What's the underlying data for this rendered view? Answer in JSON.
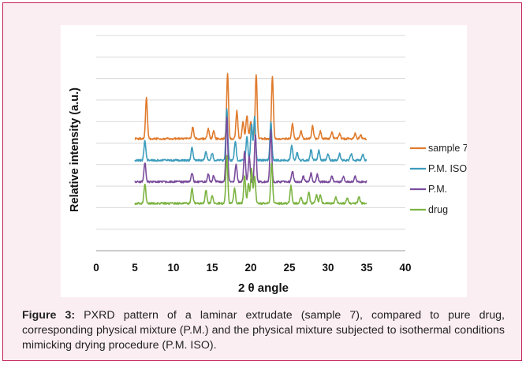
{
  "chart_data": {
    "type": "line",
    "xlabel": "2 θ angle",
    "ylabel": "Relative intensity (a.u.)",
    "xlim": [
      0,
      40
    ],
    "x_ticks": [
      "0",
      "5",
      "10",
      "15",
      "20",
      "25",
      "30",
      "35",
      "40"
    ],
    "x_tick_values": [
      0,
      5,
      10,
      15,
      20,
      25,
      30,
      35,
      40
    ],
    "ylim": [
      0,
      10
    ],
    "grid": "horizontal",
    "legend_position": "right",
    "series": [
      {
        "name": "sample 7",
        "color": "#e07b2d",
        "baseline": 5.2,
        "peaks": [
          [
            6.5,
            1.9
          ],
          [
            12.5,
            0.55
          ],
          [
            14.5,
            0.45
          ],
          [
            15.2,
            0.35
          ],
          [
            17.0,
            3.0
          ],
          [
            18.2,
            1.3
          ],
          [
            19.0,
            0.8
          ],
          [
            19.5,
            1.1
          ],
          [
            20.0,
            0.8
          ],
          [
            20.7,
            3.0
          ],
          [
            22.8,
            2.9
          ],
          [
            25.4,
            0.7
          ],
          [
            26.5,
            0.35
          ],
          [
            28.0,
            0.6
          ],
          [
            29.0,
            0.35
          ],
          [
            30.5,
            0.3
          ],
          [
            31.5,
            0.25
          ],
          [
            33.5,
            0.25
          ],
          [
            34.2,
            0.2
          ]
        ]
      },
      {
        "name": "P.M. ISO",
        "color": "#3c9cbc",
        "baseline": 4.2,
        "peaks": [
          [
            6.3,
            0.9
          ],
          [
            12.4,
            0.6
          ],
          [
            14.2,
            0.4
          ],
          [
            15.0,
            0.35
          ],
          [
            16.9,
            2.4
          ],
          [
            18.0,
            0.9
          ],
          [
            19.5,
            1.1
          ],
          [
            20.1,
            1.7
          ],
          [
            20.5,
            2.0
          ],
          [
            22.6,
            1.8
          ],
          [
            25.3,
            0.7
          ],
          [
            26.0,
            0.35
          ],
          [
            27.8,
            0.5
          ],
          [
            28.8,
            0.45
          ],
          [
            30.0,
            0.3
          ],
          [
            31.5,
            0.3
          ],
          [
            33.0,
            0.3
          ],
          [
            34.5,
            0.3
          ]
        ]
      },
      {
        "name": "P.M.",
        "color": "#7a4c9c",
        "baseline": 3.2,
        "peaks": [
          [
            6.3,
            0.9
          ],
          [
            12.4,
            0.4
          ],
          [
            14.5,
            0.35
          ],
          [
            15.2,
            0.3
          ],
          [
            16.9,
            3.0
          ],
          [
            18.1,
            0.8
          ],
          [
            19.2,
            1.4
          ],
          [
            19.8,
            1.2
          ],
          [
            20.6,
            2.2
          ],
          [
            22.6,
            2.4
          ],
          [
            25.4,
            0.5
          ],
          [
            26.8,
            0.25
          ],
          [
            27.8,
            0.4
          ],
          [
            28.6,
            0.35
          ],
          [
            30.5,
            0.25
          ],
          [
            32.0,
            0.25
          ],
          [
            33.5,
            0.25
          ]
        ]
      },
      {
        "name": "drug",
        "color": "#7cb342",
        "baseline": 2.2,
        "peaks": [
          [
            6.3,
            0.9
          ],
          [
            12.4,
            0.7
          ],
          [
            14.2,
            0.6
          ],
          [
            15.0,
            0.35
          ],
          [
            16.9,
            2.2
          ],
          [
            17.9,
            0.7
          ],
          [
            19.2,
            1.3
          ],
          [
            19.7,
            0.9
          ],
          [
            20.1,
            1.6
          ],
          [
            20.5,
            1.3
          ],
          [
            22.7,
            1.9
          ],
          [
            25.2,
            0.8
          ],
          [
            26.5,
            0.3
          ],
          [
            27.5,
            0.5
          ],
          [
            28.5,
            0.4
          ],
          [
            29.0,
            0.4
          ],
          [
            31.0,
            0.3
          ],
          [
            32.5,
            0.25
          ],
          [
            34.0,
            0.3
          ]
        ]
      }
    ]
  },
  "caption": {
    "label": "Figure 3:",
    "text": " PXRD pattern of a laminar extrudate (sample 7), compared to pure drug, corresponding physical mixture (P.M.) and the physical mixture subjected to isothermal conditions mimicking drying procedure (P.M. ISO)."
  }
}
